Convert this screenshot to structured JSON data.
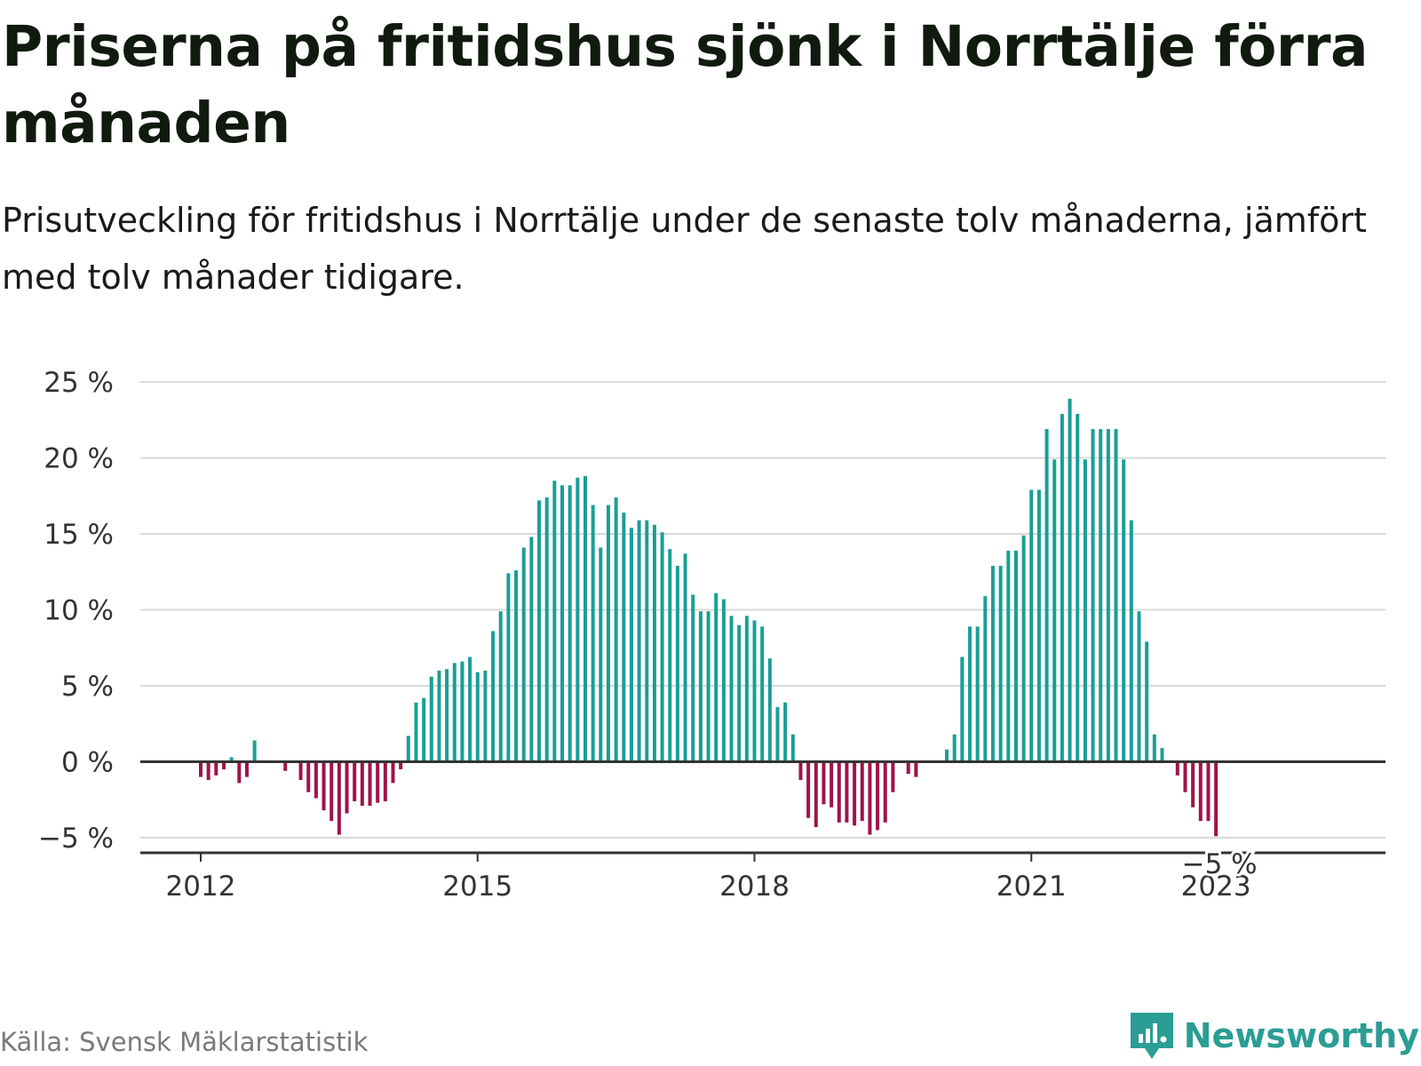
{
  "title": "Priserna på fritidshus sjönk i Norrtälje förra månaden",
  "subtitle": "Prisutveckling för fritidshus i Norrtälje under de senaste tolv månaderna, jämfört med tolv månader tidigare.",
  "source": "Källa: Svensk Mäklarstatistik",
  "logo_text": "Newsworthy",
  "colors": {
    "positive": "#1a9e96",
    "negative": "#a0124a",
    "grid": "#d9d9d9",
    "axis": "#333333",
    "logo": "#2a9d94"
  },
  "chart_data": {
    "type": "bar",
    "ylim": [
      -5,
      25
    ],
    "yticks": [
      -5,
      0,
      5,
      10,
      15,
      20,
      25
    ],
    "ytick_labels": [
      "−5 %",
      "0 %",
      "5 %",
      "10 %",
      "15 %",
      "20 %",
      "25 %"
    ],
    "x_start": "2012-01",
    "xticks": [
      {
        "label": "2012",
        "date": "2012-01"
      },
      {
        "label": "2015",
        "date": "2015-01"
      },
      {
        "label": "2018",
        "date": "2018-01"
      },
      {
        "label": "2021",
        "date": "2021-01"
      },
      {
        "label": "2023",
        "date": "2023-01"
      }
    ],
    "last_value_label": "−5 %",
    "values": [
      -1.0,
      -1.2,
      -0.9,
      -0.5,
      0.3,
      -1.4,
      -1.0,
      1.4,
      null,
      null,
      null,
      -0.6,
      null,
      -1.2,
      -2.0,
      -2.4,
      -3.2,
      -3.9,
      -4.8,
      -3.4,
      -2.6,
      -2.9,
      -2.9,
      -2.7,
      -2.6,
      -1.4,
      -0.5,
      1.7,
      3.9,
      4.2,
      5.6,
      6.0,
      6.1,
      6.5,
      6.6,
      6.9,
      5.9,
      6.0,
      8.6,
      9.9,
      12.4,
      12.6,
      14.1,
      14.8,
      17.2,
      17.4,
      18.5,
      18.2,
      18.2,
      18.7,
      18.8,
      16.9,
      14.1,
      16.9,
      17.4,
      16.4,
      15.4,
      15.9,
      15.9,
      15.6,
      15.1,
      14.0,
      12.9,
      13.7,
      11.0,
      9.9,
      9.9,
      11.1,
      10.7,
      9.6,
      9.0,
      9.6,
      9.3,
      8.9,
      6.8,
      3.6,
      3.9,
      1.8,
      -1.2,
      -3.7,
      -4.3,
      -2.8,
      -3.0,
      -4.0,
      -4.0,
      -4.2,
      -3.9,
      -4.8,
      -4.5,
      -4.0,
      -2.0,
      null,
      -0.8,
      -1.0,
      null,
      null,
      null,
      0.8,
      1.8,
      6.9,
      8.9,
      8.9,
      10.9,
      12.9,
      12.9,
      13.9,
      13.9,
      14.9,
      17.9,
      17.9,
      21.9,
      19.9,
      22.9,
      23.9,
      22.9,
      19.9,
      21.9,
      21.9,
      21.9,
      21.9,
      19.9,
      15.9,
      9.9,
      7.9,
      1.8,
      0.9,
      null,
      -0.9,
      -2.0,
      -3.0,
      -3.9,
      -3.9,
      -4.9
    ]
  }
}
